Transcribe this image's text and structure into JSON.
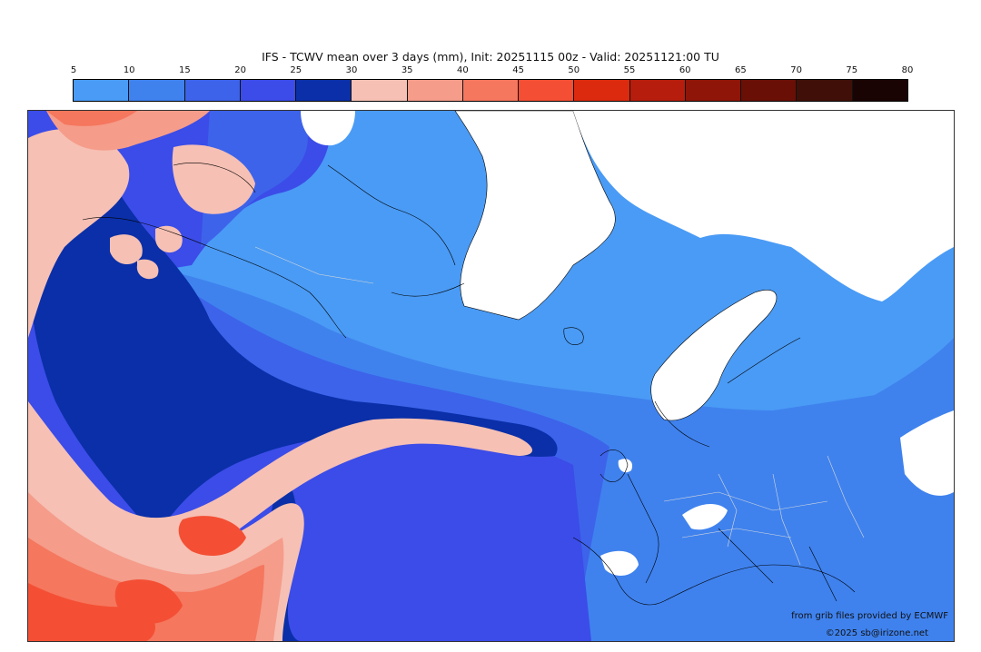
{
  "title": "IFS - TCWV mean over 3 days (mm), Init: 20251115 00z - Valid: 20251121:00 TU",
  "legend": {
    "ticks": [
      "5",
      "10",
      "15",
      "20",
      "25",
      "30",
      "35",
      "40",
      "45",
      "50",
      "55",
      "60",
      "65",
      "70",
      "75",
      "80"
    ],
    "colors": [
      "#4a9bf5",
      "#3f82ee",
      "#3d63ea",
      "#3b4ce8",
      "#0a2fa8",
      "#f6c0b4",
      "#f59c8a",
      "#f5775e",
      "#f44f34",
      "#dc2a0f",
      "#b61d0c",
      "#8f1508",
      "#6a0f06",
      "#401008",
      "#1a0403"
    ]
  },
  "map": {
    "palette": {
      "land_snow": "#ffffff",
      "coastline": "#000000",
      "border": "#d9d9d9"
    }
  },
  "credits": {
    "source": "from grib files provided by ECMWF",
    "copyright": "©2025 sb@irizone.net"
  }
}
